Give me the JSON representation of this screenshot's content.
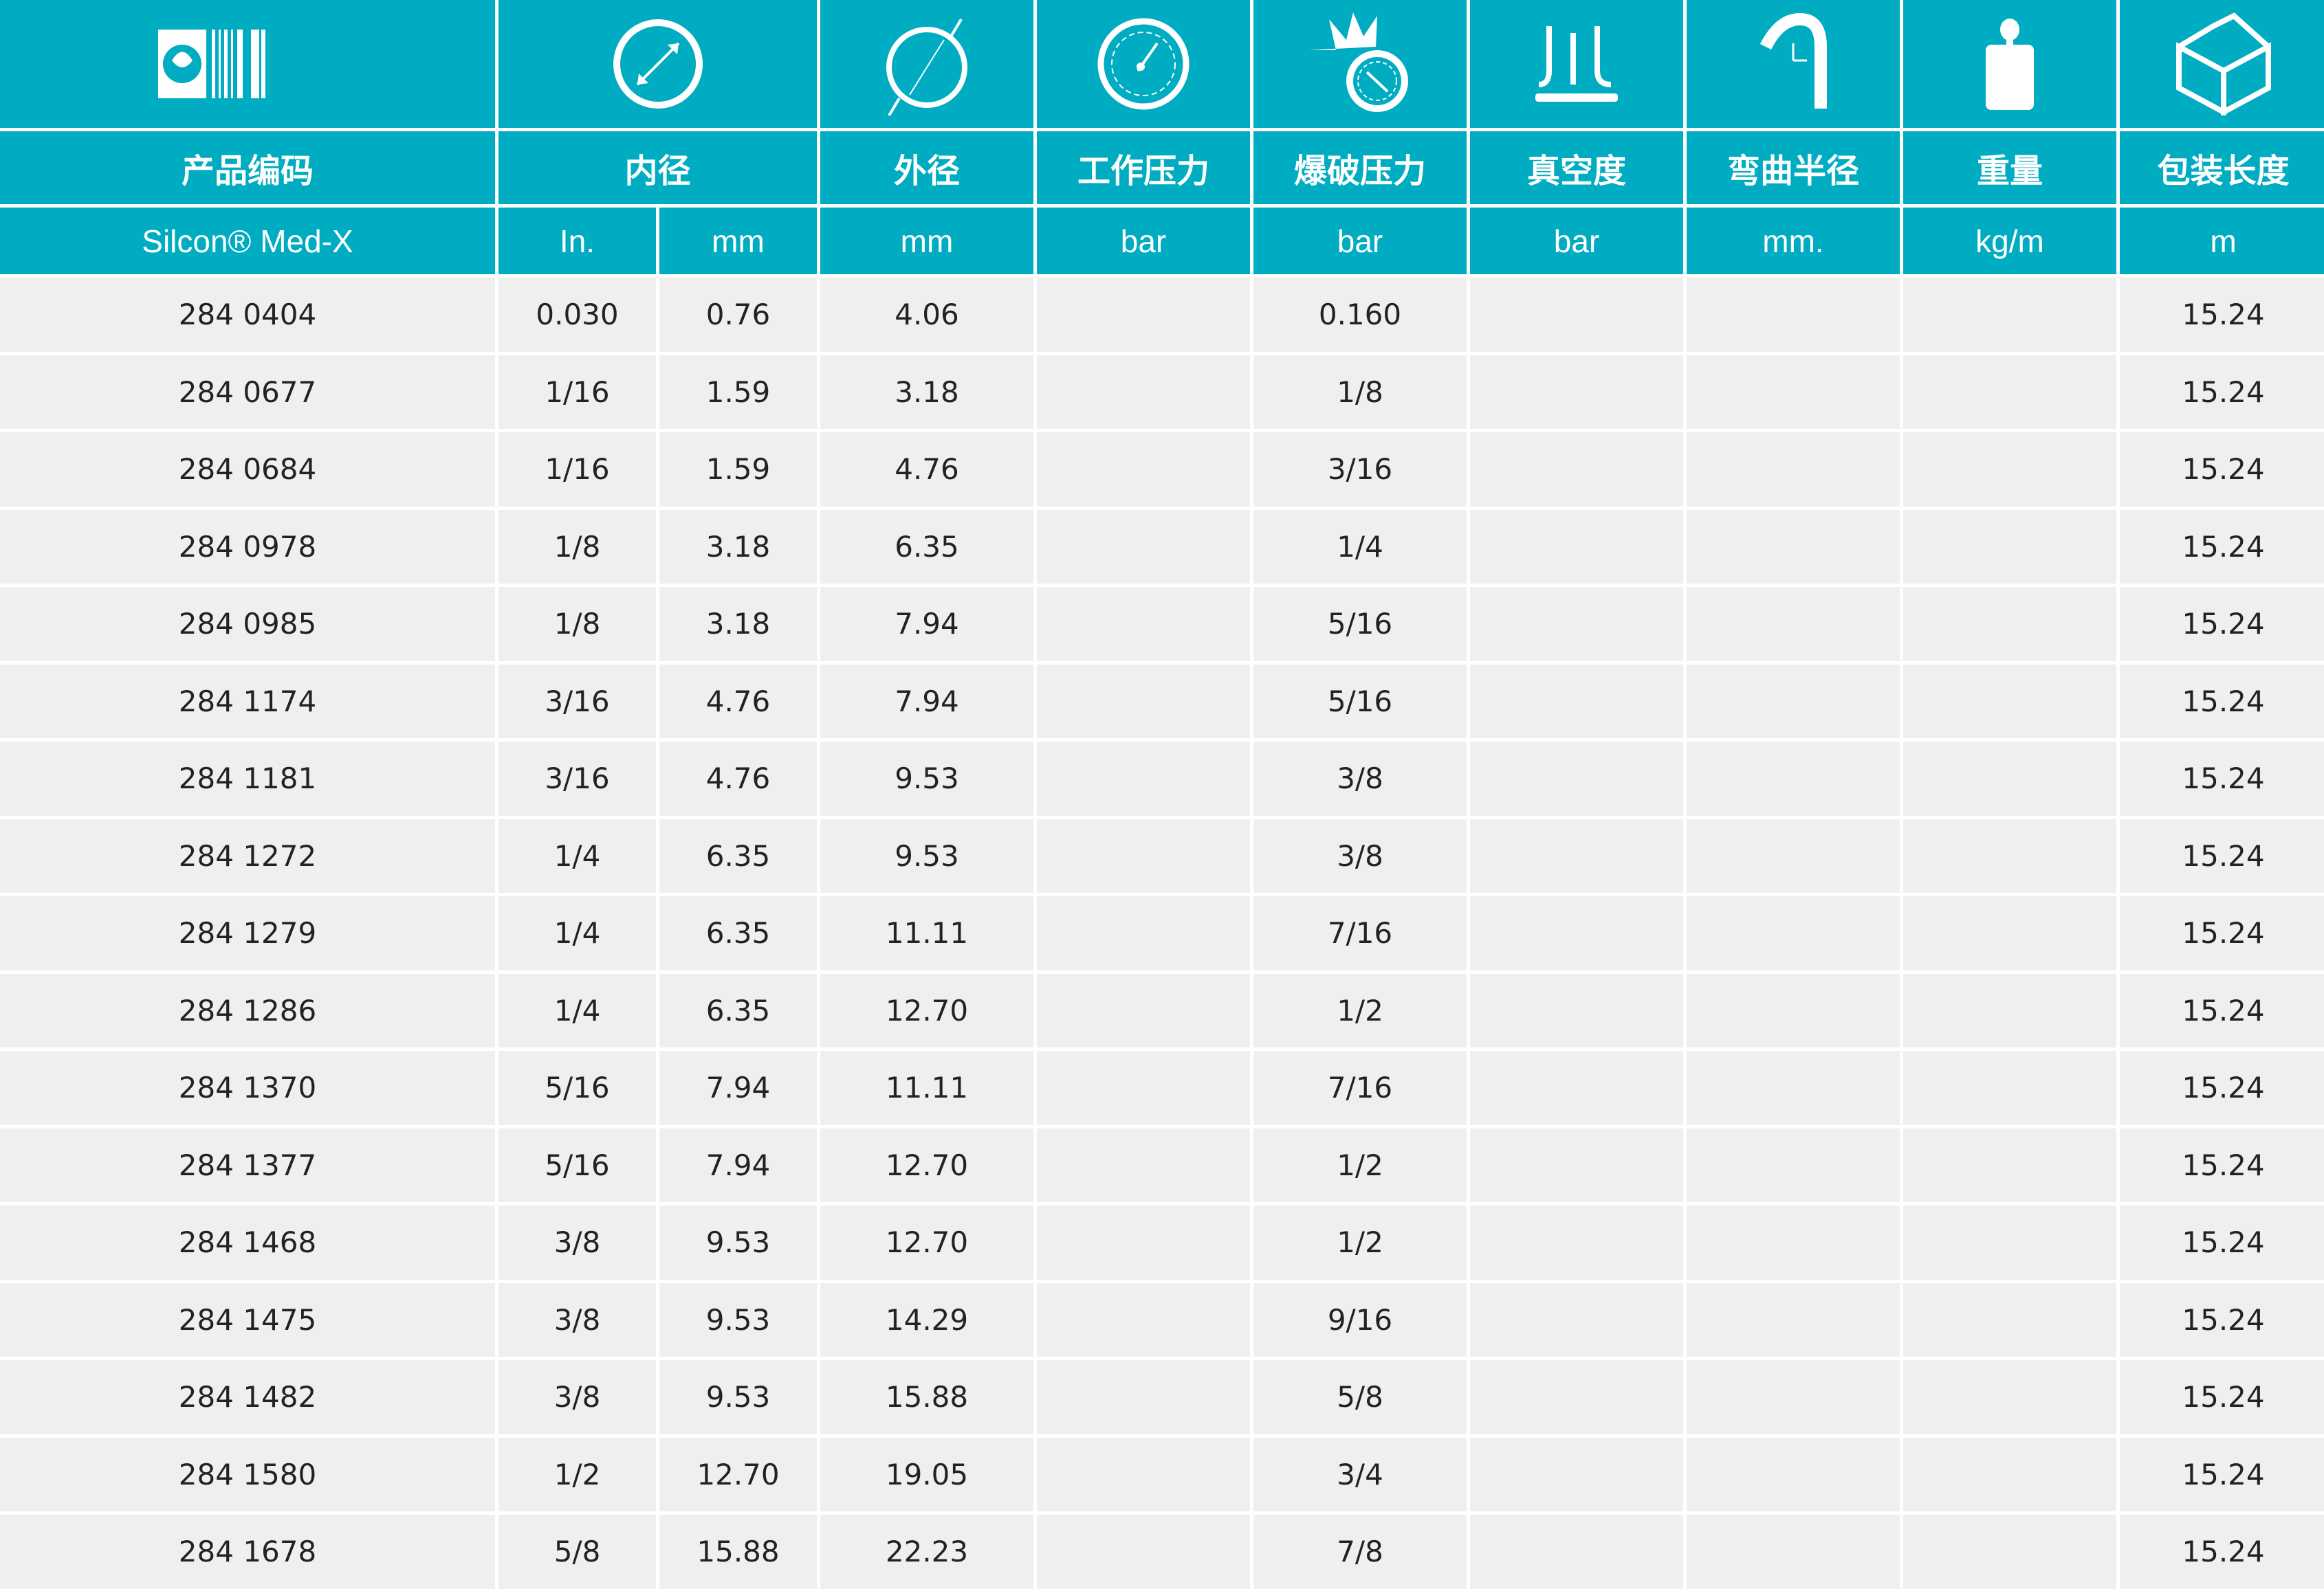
{
  "colors": {
    "header": "#00acc1",
    "row": "#efefef"
  },
  "icons": [
    "logo-barcode",
    "inner-diameter-icon",
    "outer-diameter-icon",
    "gauge-icon",
    "burst-gauge-icon",
    "vacuum-icon",
    "bend-radius-icon",
    "weight-icon",
    "box-icon"
  ],
  "headers": [
    "产品编码",
    "内径",
    "外径",
    "工作压力",
    "爆破压力",
    "真空度",
    "弯曲半径",
    "重量",
    "包装长度"
  ],
  "units": [
    "Silcon® Med-X",
    "In.",
    "mm",
    "mm",
    "bar",
    "bar",
    "bar",
    "mm.",
    "kg/m",
    "m"
  ],
  "rows": [
    [
      "284 0404",
      "0.030",
      "0.76",
      "4.06",
      "",
      "0.160",
      "",
      "",
      "",
      "15.24"
    ],
    [
      "284 0677",
      "1/16",
      "1.59",
      "3.18",
      "",
      "1/8",
      "",
      "",
      "",
      "15.24"
    ],
    [
      "284 0684",
      "1/16",
      "1.59",
      "4.76",
      "",
      "3/16",
      "",
      "",
      "",
      "15.24"
    ],
    [
      "284 0978",
      "1/8",
      "3.18",
      "6.35",
      "",
      "1/4",
      "",
      "",
      "",
      "15.24"
    ],
    [
      "284 0985",
      "1/8",
      "3.18",
      "7.94",
      "",
      "5/16",
      "",
      "",
      "",
      "15.24"
    ],
    [
      "284 1174",
      "3/16",
      "4.76",
      "7.94",
      "",
      "5/16",
      "",
      "",
      "",
      "15.24"
    ],
    [
      "284 1181",
      "3/16",
      "4.76",
      "9.53",
      "",
      "3/8",
      "",
      "",
      "",
      "15.24"
    ],
    [
      "284 1272",
      "1/4",
      "6.35",
      "9.53",
      "",
      "3/8",
      "",
      "",
      "",
      "15.24"
    ],
    [
      "284 1279",
      "1/4",
      "6.35",
      "11.11",
      "",
      "7/16",
      "",
      "",
      "",
      "15.24"
    ],
    [
      "284 1286",
      "1/4",
      "6.35",
      "12.70",
      "",
      "1/2",
      "",
      "",
      "",
      "15.24"
    ],
    [
      "284 1370",
      "5/16",
      "7.94",
      "11.11",
      "",
      "7/16",
      "",
      "",
      "",
      "15.24"
    ],
    [
      "284 1377",
      "5/16",
      "7.94",
      "12.70",
      "",
      "1/2",
      "",
      "",
      "",
      "15.24"
    ],
    [
      "284 1468",
      "3/8",
      "9.53",
      "12.70",
      "",
      "1/2",
      "",
      "",
      "",
      "15.24"
    ],
    [
      "284 1475",
      "3/8",
      "9.53",
      "14.29",
      "",
      "9/16",
      "",
      "",
      "",
      "15.24"
    ],
    [
      "284 1482",
      "3/8",
      "9.53",
      "15.88",
      "",
      "5/8",
      "",
      "",
      "",
      "15.24"
    ],
    [
      "284 1580",
      "1/2",
      "12.70",
      "19.05",
      "",
      "3/4",
      "",
      "",
      "",
      "15.24"
    ],
    [
      "284 1678",
      "5/8",
      "15.88",
      "22.23",
      "",
      "7/8",
      "",
      "",
      "",
      "15.24"
    ]
  ]
}
